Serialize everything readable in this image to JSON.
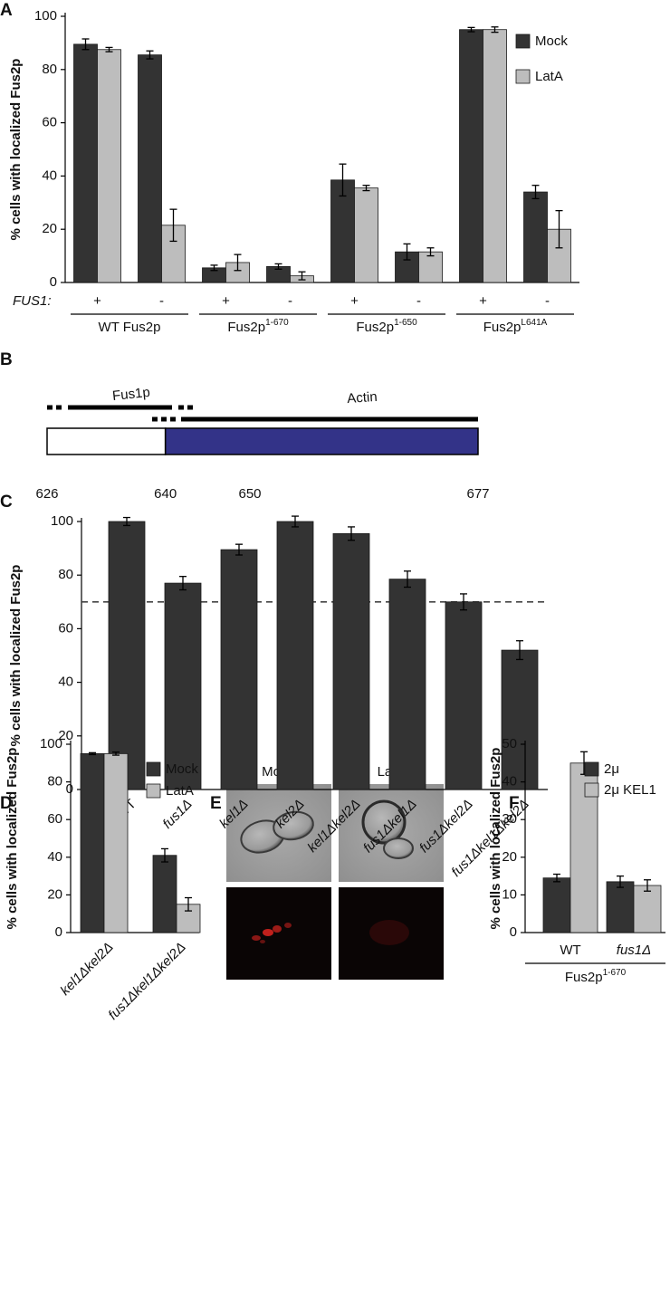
{
  "panel_labels": [
    "A",
    "B",
    "C",
    "D",
    "E",
    "F"
  ],
  "chart_data": [
    {
      "type": "bar",
      "ylabel": "% cells with localized Fus2p",
      "ylim": [
        0,
        100
      ],
      "yticks": [
        0,
        20,
        40,
        60,
        80,
        100
      ],
      "row_label": "FUS1:",
      "categories": [
        "+",
        "-",
        "+",
        "-",
        "+",
        "-",
        "+",
        "-"
      ],
      "groups": [
        {
          "text": "WT Fus2p"
        },
        {
          "text": "Fus2p",
          "sup": "1-670"
        },
        {
          "text": "Fus2p",
          "sup": "1-650"
        },
        {
          "text": "Fus2p",
          "sup": "L641A"
        }
      ],
      "series": [
        {
          "name": "Mock",
          "color": "#333333",
          "values": [
            89.5,
            85.5,
            5.5,
            6,
            38.5,
            11.5,
            95,
            34
          ],
          "errors": [
            2,
            1.5,
            1,
            1,
            6,
            3,
            0.8,
            2.5
          ]
        },
        {
          "name": "LatA",
          "color": "#bdbdbd",
          "values": [
            87.5,
            21.5,
            7.5,
            2.5,
            35.5,
            11.5,
            95,
            20
          ],
          "errors": [
            0.8,
            6,
            3,
            1.5,
            1,
            1.5,
            1,
            7
          ]
        }
      ],
      "legend": "upper right"
    },
    {
      "type": "bar",
      "ylabel": "% cells with localized Fus2p",
      "ylim": [
        0,
        100
      ],
      "yticks": [
        0,
        20,
        40,
        60,
        80,
        100
      ],
      "categories": [
        "WT",
        "fus1Δ",
        "kel1Δ",
        "kel2Δ",
        "kel1Δkel2Δ",
        "fus1Δkel1Δ",
        "fus1Δkel2Δ",
        "fus1Δkel1Δkel2Δ"
      ],
      "italic": [
        false,
        true,
        true,
        true,
        true,
        true,
        true,
        true
      ],
      "values": [
        100,
        77,
        89.5,
        100,
        95.5,
        78.5,
        70,
        52
      ],
      "errors": [
        1.5,
        2.5,
        2,
        2,
        2.5,
        3,
        3,
        3.5
      ],
      "color": "#333333",
      "hline": 70
    },
    {
      "type": "bar",
      "ylabel": "% cells with localized Fus2p",
      "ylim": [
        0,
        100
      ],
      "yticks": [
        0,
        20,
        40,
        60,
        80,
        100
      ],
      "categories": [
        "kel1Δkel2Δ",
        "fus1Δkel1Δkel2Δ"
      ],
      "italic": [
        true,
        true
      ],
      "series": [
        {
          "name": "Mock",
          "color": "#333333",
          "values": [
            95,
            41
          ],
          "errors": [
            0.5,
            3.5
          ]
        },
        {
          "name": "LatA",
          "color": "#bdbdbd",
          "values": [
            95,
            15
          ],
          "errors": [
            0.8,
            3.5
          ]
        }
      ],
      "legend": "upper right"
    },
    {
      "type": "bar",
      "ylabel": "% cells with localized Fus2p",
      "ylim": [
        0,
        50
      ],
      "yticks": [
        0,
        10,
        20,
        30,
        40,
        50
      ],
      "categories": [
        "WT",
        "fus1Δ"
      ],
      "italic": [
        false,
        true
      ],
      "group_label": {
        "text": "Fus2p",
        "sup": "1-670"
      },
      "series": [
        {
          "name": "2μ",
          "color": "#333333",
          "values": [
            14.5,
            13.5
          ],
          "errors": [
            1,
            1.5
          ]
        },
        {
          "name": "2μ KEL1",
          "color": "#bdbdbd",
          "values": [
            45,
            12.5
          ],
          "errors": [
            3,
            1.5
          ]
        }
      ],
      "legend": "upper right"
    }
  ],
  "diagram": {
    "fus1p": "Fus1p",
    "actin": "Actin",
    "residues": [
      626,
      640,
      650,
      677
    ]
  },
  "images": {
    "labels": [
      "Mock",
      "LatA"
    ]
  }
}
